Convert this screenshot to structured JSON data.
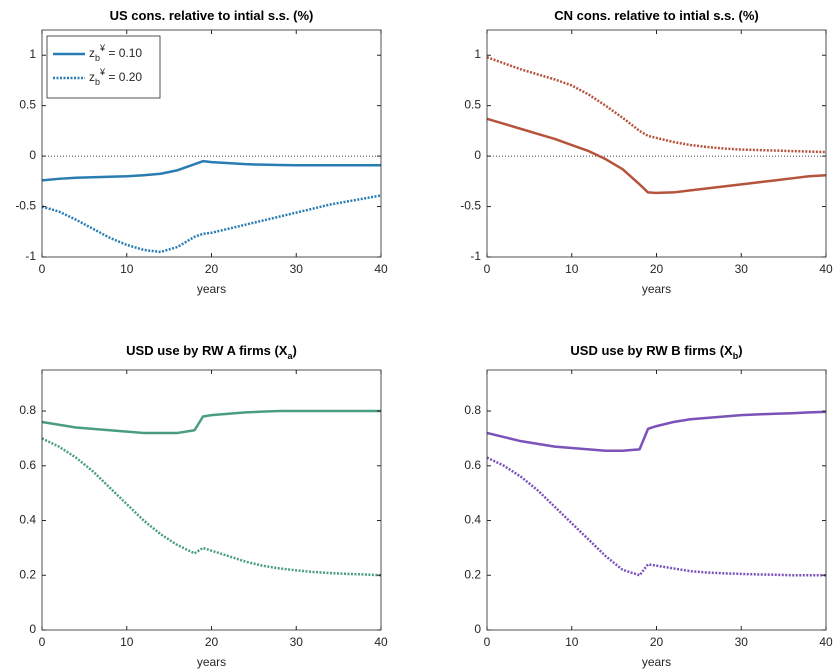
{
  "chart_data": [
    {
      "type": "line",
      "title": "US cons. relative to intial s.s. (%)",
      "xlabel": "years",
      "x": [
        0,
        2,
        4,
        6,
        8,
        10,
        12,
        14,
        16,
        18,
        19,
        20,
        22,
        24,
        26,
        28,
        30,
        32,
        34,
        36,
        38,
        40
      ],
      "series": [
        {
          "name": "z_b^¥ = 0.10",
          "color": "#2a7db3",
          "style": "solid",
          "values": [
            -0.24,
            -0.225,
            -0.215,
            -0.21,
            -0.205,
            -0.2,
            -0.19,
            -0.175,
            -0.14,
            -0.08,
            -0.05,
            -0.06,
            -0.07,
            -0.08,
            -0.085,
            -0.088,
            -0.09,
            -0.09,
            -0.09,
            -0.09,
            -0.09,
            -0.09
          ]
        },
        {
          "name": "z_b^¥ = 0.20",
          "color": "#2a7db3",
          "style": "dotted",
          "values": [
            -0.5,
            -0.55,
            -0.63,
            -0.72,
            -0.81,
            -0.88,
            -0.93,
            -0.95,
            -0.9,
            -0.8,
            -0.77,
            -0.76,
            -0.72,
            -0.68,
            -0.64,
            -0.6,
            -0.56,
            -0.52,
            -0.48,
            -0.45,
            -0.42,
            -0.39
          ]
        }
      ],
      "xlim": [
        0,
        40
      ],
      "xticks": [
        0,
        10,
        20,
        30,
        40
      ],
      "ylim": [
        -1,
        1.25
      ],
      "yticks": [
        -1,
        -0.5,
        0,
        0.5,
        1
      ],
      "zero_line": true,
      "legend": "northwest"
    },
    {
      "type": "line",
      "title": "CN cons. relative to intial s.s. (%)",
      "xlabel": "years",
      "x": [
        0,
        2,
        4,
        6,
        8,
        10,
        12,
        14,
        16,
        18,
        19,
        20,
        22,
        24,
        26,
        28,
        30,
        32,
        34,
        36,
        38,
        40
      ],
      "series": [
        {
          "color": "#b5533c",
          "style": "solid",
          "values": [
            0.37,
            0.32,
            0.27,
            0.22,
            0.17,
            0.11,
            0.05,
            -0.03,
            -0.13,
            -0.28,
            -0.36,
            -0.365,
            -0.36,
            -0.34,
            -0.32,
            -0.3,
            -0.28,
            -0.26,
            -0.24,
            -0.22,
            -0.2,
            -0.19
          ]
        },
        {
          "color": "#b5533c",
          "style": "dotted",
          "values": [
            0.98,
            0.92,
            0.86,
            0.81,
            0.76,
            0.7,
            0.61,
            0.5,
            0.38,
            0.25,
            0.2,
            0.18,
            0.14,
            0.11,
            0.09,
            0.075,
            0.065,
            0.06,
            0.055,
            0.05,
            0.045,
            0.04
          ]
        }
      ],
      "xlim": [
        0,
        40
      ],
      "xticks": [
        0,
        10,
        20,
        30,
        40
      ],
      "ylim": [
        -1,
        1.25
      ],
      "yticks": [
        -1,
        -0.5,
        0,
        0.5,
        1
      ],
      "zero_line": true
    },
    {
      "type": "line",
      "title": "USD use by RW A firms (X_a)",
      "xlabel": "years",
      "x": [
        0,
        2,
        4,
        6,
        8,
        10,
        12,
        14,
        16,
        18,
        19,
        20,
        22,
        24,
        26,
        28,
        30,
        32,
        34,
        36,
        38,
        40
      ],
      "series": [
        {
          "color": "#4a9e80",
          "style": "solid",
          "values": [
            0.76,
            0.75,
            0.74,
            0.735,
            0.73,
            0.725,
            0.72,
            0.72,
            0.72,
            0.73,
            0.78,
            0.785,
            0.79,
            0.795,
            0.798,
            0.8,
            0.8,
            0.8,
            0.8,
            0.8,
            0.8,
            0.8
          ]
        },
        {
          "color": "#4a9e80",
          "style": "dotted",
          "values": [
            0.7,
            0.67,
            0.63,
            0.58,
            0.52,
            0.46,
            0.4,
            0.35,
            0.31,
            0.28,
            0.3,
            0.29,
            0.27,
            0.25,
            0.235,
            0.225,
            0.218,
            0.212,
            0.208,
            0.205,
            0.203,
            0.2
          ]
        }
      ],
      "xlim": [
        0,
        40
      ],
      "xticks": [
        0,
        10,
        20,
        30,
        40
      ],
      "ylim": [
        0,
        0.95
      ],
      "yticks": [
        0,
        0.2,
        0.4,
        0.6,
        0.8
      ]
    },
    {
      "type": "line",
      "title": "USD use by RW B firms (X_b)",
      "xlabel": "years",
      "x": [
        0,
        2,
        4,
        6,
        8,
        10,
        12,
        14,
        16,
        18,
        19,
        20,
        22,
        24,
        26,
        28,
        30,
        32,
        34,
        36,
        38,
        40
      ],
      "series": [
        {
          "color": "#7b52b9",
          "style": "solid",
          "values": [
            0.72,
            0.705,
            0.69,
            0.68,
            0.67,
            0.665,
            0.66,
            0.655,
            0.655,
            0.66,
            0.735,
            0.745,
            0.76,
            0.77,
            0.775,
            0.78,
            0.785,
            0.788,
            0.79,
            0.792,
            0.795,
            0.797
          ]
        },
        {
          "color": "#7b52b9",
          "style": "dotted",
          "values": [
            0.63,
            0.6,
            0.56,
            0.51,
            0.45,
            0.39,
            0.33,
            0.27,
            0.22,
            0.2,
            0.24,
            0.235,
            0.225,
            0.215,
            0.21,
            0.207,
            0.205,
            0.203,
            0.202,
            0.2,
            0.2,
            0.2
          ]
        }
      ],
      "xlim": [
        0,
        40
      ],
      "xticks": [
        0,
        10,
        20,
        30,
        40
      ],
      "ylim": [
        0,
        0.95
      ],
      "yticks": [
        0,
        0.2,
        0.4,
        0.6,
        0.8
      ]
    }
  ]
}
